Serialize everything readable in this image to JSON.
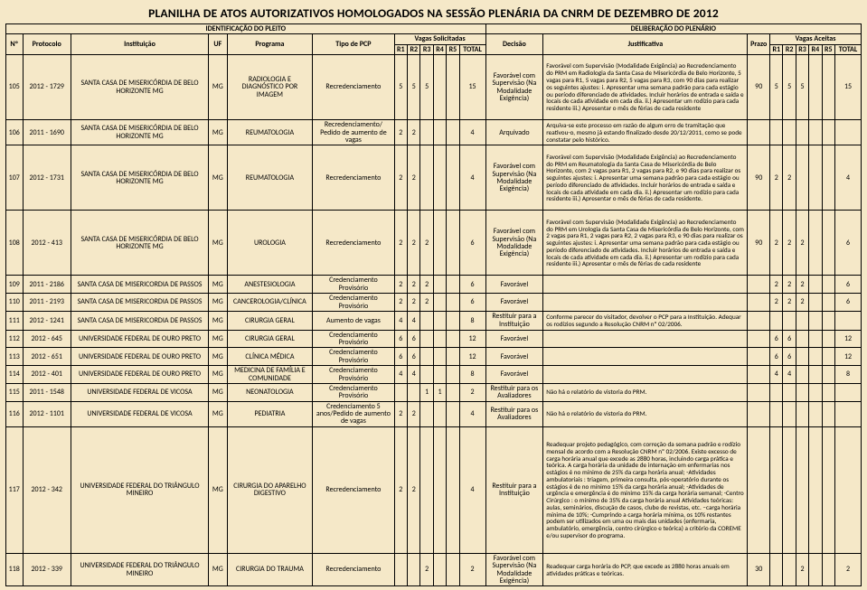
{
  "title": "PLANILHA DE ATOS AUTORIZATIVOS HOMOLOGADOS NA SESSÃO PLENÁRIA DA CNRM DE DEZEMBRO DE 2012",
  "section_left": "IDENTIFICAÇÃO DO PLEITO",
  "section_right": "DELIBERAÇÃO DO PLENÁRIO",
  "headers": {
    "no": "Nº",
    "protocolo": "Protocolo",
    "instituicao": "Instituição",
    "uf": "UF",
    "programa": "Programa",
    "tipo": "Tipo de PCP",
    "vagas_sol": "Vagas Solicitadas",
    "vagas_ac": "Vagas Aceitas",
    "r1": "R1",
    "r2": "R2",
    "r3": "R3",
    "r4": "R4",
    "r5": "R5",
    "total": "TOTAL",
    "decisao": "Decisão",
    "justificativa": "Justificativa",
    "prazo": "Prazo"
  },
  "rows": [
    {
      "no": "105",
      "prot": "2012 - 1729",
      "inst": "SANTA CASA DE MISERICÓRDIA DE BELO HORIZONTE MG",
      "uf": "MG",
      "prog": "RADIOLOGIA E DIAGNÓSTICO POR IMAGEM",
      "tipo": "Recredenciamento",
      "sol": [
        "5",
        "5",
        "5",
        "",
        "",
        "15"
      ],
      "dec": "Favorável com Supervisão (Na Modalidade Exigência)",
      "just": "Favorável com Supervisão (Modalidade Exigência) ao Recredenciamento do PRM em Radiologia da Santa Casa de Misericórdia de Belo Horizonte, 5 vagas para R1, 5 vagas para R2, 5 vagas para R3, com 90 dias para realizar os seguintes ajustes: i. Apresentar uma semana padrão para cada estágio ou período diferenciado de atividades. Incluir horários de entrada e saída e locais de cada atividade em cada dia. ii.) Apresentar um rodízio para cada residente iii.) Apresentar o mês de férias de cada residente",
      "prazo": "90",
      "ac": [
        "5",
        "5",
        "5",
        "",
        "",
        "15"
      ]
    },
    {
      "no": "106",
      "prot": "2011 - 1690",
      "inst": "SANTA CASA DE MISERICÓRDIA DE BELO HORIZONTE MG",
      "uf": "MG",
      "prog": "REUMATOLOGIA",
      "tipo": "Recredenciamento/ Pedido de aumento de vagas",
      "sol": [
        "2",
        "2",
        "",
        "",
        "",
        "4"
      ],
      "dec": "Arquivado",
      "just": "Arquiva-se este processo em razão de algum erro de tramitação que reativou-o, mesmo já estando finalizado desde 20/12/2011, como se pode constatar pelo histórico.",
      "prazo": "",
      "ac": [
        "",
        "",
        "",
        "",
        "",
        ""
      ]
    },
    {
      "no": "107",
      "prot": "2012 - 1731",
      "inst": "SANTA CASA DE MISERICÓRDIA DE BELO HORIZONTE MG",
      "uf": "MG",
      "prog": "REUMATOLOGIA",
      "tipo": "Recredenciamento",
      "sol": [
        "2",
        "2",
        "",
        "",
        "",
        "4"
      ],
      "dec": "Favorável com Supervisão (Na Modalidade Exigência)",
      "just": "Favorável com Supervisão (Modalidade Exigência) ao Recredenciamento do PRM em Reumatologia da Santa Casa de Misericórdia de Belo Horizonte, com 2 vagas para R1, 2 vagas para R2, e 90 dias para realizar os seguintes ajustes: i. Apresentar uma semana padrão para cada estágio ou período diferenciado de atividades. Incluir horários de entrada e saída e locais de cada atividade em cada dia. ii.) Apresentar um rodízio para cada residente iii.) Apresentar o mês de férias de cada residente.",
      "prazo": "90",
      "ac": [
        "2",
        "2",
        "",
        "",
        "",
        "4"
      ]
    },
    {
      "no": "108",
      "prot": "2012 - 413",
      "inst": "SANTA CASA DE MISERICÓRDIA DE BELO HORIZONTE MG",
      "uf": "MG",
      "prog": "UROLOGIA",
      "tipo": "Recredenciamento",
      "sol": [
        "2",
        "2",
        "2",
        "",
        "",
        "6"
      ],
      "dec": "Favorável com Supervisão (Na Modalidade Exigência)",
      "just": "Favorável com Supervisão (Modalidade Exigência) ao Recredenciamento do PRM em Urologia da Santa Casa de Misericórdia de Belo Horizonte, com 2 vagas para R1, 2 vagas para R2, 2 vagas para R3, e 90 dias para realizar os seguintes ajustes: i. Apresentar uma semana padrão para cada estágio ou período diferenciado de atividades. Incluir horários de entrada e saída e locais de cada atividade em cada dia. ii.) Apresentar um rodízio para cada residente iii.) Apresentar o mês de férias de cada residente",
      "prazo": "90",
      "ac": [
        "2",
        "2",
        "2",
        "",
        "",
        "6"
      ]
    },
    {
      "no": "109",
      "prot": "2011 - 2186",
      "inst": "SANTA CASA DE MISERICORDIA DE PASSOS",
      "uf": "MG",
      "prog": "ANESTESIOLOGIA",
      "tipo": "Credenciamento Provisório",
      "sol": [
        "2",
        "2",
        "2",
        "",
        "",
        "6"
      ],
      "dec": "Favorável",
      "just": "",
      "prazo": "",
      "ac": [
        "2",
        "2",
        "2",
        "",
        "",
        "6"
      ]
    },
    {
      "no": "110",
      "prot": "2011 - 2193",
      "inst": "SANTA CASA DE MISERICORDIA DE PASSOS",
      "uf": "MG",
      "prog": "CANCEROLOGIA/CLÍNICA",
      "tipo": "Credenciamento Provisório",
      "sol": [
        "2",
        "2",
        "2",
        "",
        "",
        "6"
      ],
      "dec": "Favorável",
      "just": "",
      "prazo": "",
      "ac": [
        "2",
        "2",
        "2",
        "",
        "",
        "6"
      ]
    },
    {
      "no": "111",
      "prot": "2012 - 1241",
      "inst": "SANTA CASA DE MISERICORDIA DE PASSOS",
      "uf": "MG",
      "prog": "CIRURGIA GERAL",
      "tipo": "Aumento de vagas",
      "sol": [
        "4",
        "4",
        "",
        "",
        "",
        "8"
      ],
      "dec": "Restituir para a Instituição",
      "just": "Conforme parecer do visitador, devolver o PCP para a Instituição. Adequar os rodízios segundo a Resolução CNRM nº 02/2006.",
      "prazo": "",
      "ac": [
        "",
        "",
        "",
        "",
        "",
        ""
      ]
    },
    {
      "no": "112",
      "prot": "2012 - 645",
      "inst": "UNIVERSIDADE FEDERAL DE OURO PRETO",
      "uf": "MG",
      "prog": "CIRURGIA GERAL",
      "tipo": "Credenciamento Provisório",
      "sol": [
        "6",
        "6",
        "",
        "",
        "",
        "12"
      ],
      "dec": "Favorável",
      "just": "",
      "prazo": "",
      "ac": [
        "6",
        "6",
        "",
        "",
        "",
        "12"
      ]
    },
    {
      "no": "113",
      "prot": "2012 - 651",
      "inst": "UNIVERSIDADE FEDERAL DE OURO PRETO",
      "uf": "MG",
      "prog": "CLÍNICA MÉDICA",
      "tipo": "Credenciamento Provisório",
      "sol": [
        "6",
        "6",
        "",
        "",
        "",
        "12"
      ],
      "dec": "Favorável",
      "just": "",
      "prazo": "",
      "ac": [
        "6",
        "6",
        "",
        "",
        "",
        "12"
      ]
    },
    {
      "no": "114",
      "prot": "2012 - 401",
      "inst": "UNIVERSIDADE FEDERAL DE OURO PRETO",
      "uf": "MG",
      "prog": "MEDICINA DE FAMÍLIA E COMUNIDADE",
      "tipo": "Credenciamento Provisório",
      "sol": [
        "4",
        "4",
        "",
        "",
        "",
        "8"
      ],
      "dec": "Favorável",
      "just": "",
      "prazo": "",
      "ac": [
        "4",
        "4",
        "",
        "",
        "",
        "8"
      ]
    },
    {
      "no": "115",
      "prot": "2011 - 1548",
      "inst": "UNIVERSIDADE FEDERAL DE VICOSA",
      "uf": "MG",
      "prog": "NEONATOLOGIA",
      "tipo": "Credenciamento Provisório",
      "sol": [
        "",
        "",
        "1",
        "1",
        "",
        "2"
      ],
      "dec": "Restituir para os Avaliadores",
      "just": "Não há o relatório de vistoria do PRM.",
      "prazo": "",
      "ac": [
        "",
        "",
        "",
        "",
        "",
        ""
      ]
    },
    {
      "no": "116",
      "prot": "2012 - 1101",
      "inst": "UNIVERSIDADE FEDERAL DE VICOSA",
      "uf": "MG",
      "prog": "PEDIATRIA",
      "tipo": "Credenciamento 5 anos/Pedido de aumento de vagas",
      "sol": [
        "2",
        "2",
        "",
        "",
        "",
        "4"
      ],
      "dec": "Restituir para os Avaliadores",
      "just": "Não há o relatório de vistoria do PRM.",
      "prazo": "",
      "ac": [
        "",
        "",
        "",
        "",
        "",
        ""
      ]
    },
    {
      "no": "117",
      "prot": "2012 - 342",
      "inst": "UNIVERSIDADE FEDERAL DO TRIÂNGULO MINEIRO",
      "uf": "MG",
      "prog": "CIRURGIA DO APARELHO DIGESTIVO",
      "tipo": "Recredenciamento",
      "sol": [
        "2",
        "2",
        "",
        "",
        "",
        "4"
      ],
      "dec": "Restituir para a Instituição",
      "just": "Readequar projeto pedagógico, com correção da semana padrão e rodízio mensal de acordo com a Resolução CNRM nº 02/2006. Existe excesso de carga horária anual que excede as 2880 horas, incluindo carga prática e teórica. A carga horária da unidade de internação em enfermarias nos estágios é no mínimo de 25% da carga horária anual; -Atividades ambulatoriais : triagem, primeira consulta, pós-operatório durante os estágios é de no mínimo 15% da carga horária anual; -Atividades de urgência e emergência é do mínimo 15% da carga horária semanal; -Centro Cirúrgico : o mínimo de 35% da carga horária anual Atividades teóricas: aulas, seminários, discução de casos, clube de revistas, etc. –carga horária mínima de 10%; -Cumprindo a carga horária mínima, os 10% restantes podem ser utilizados em uma ou mais das unidades (enfermaria, ambulatório, emergência, centro cirúrgico e teórica) a critério da COREME e/ou supervisor do programa.",
      "prazo": "",
      "ac": [
        "",
        "",
        "",
        "",
        "",
        ""
      ]
    },
    {
      "no": "118",
      "prot": "2012 - 339",
      "inst": "UNIVERSIDADE FEDERAL DO TRIÂNGULO MINEIRO",
      "uf": "MG",
      "prog": "CIRURGIA DO TRAUMA",
      "tipo": "Recredenciamento",
      "sol": [
        "",
        "",
        "2",
        "",
        "",
        "2"
      ],
      "dec": "Favorável com Supervisão (Na Modalidade Exigência)",
      "just": "Readequar carga horária do PCP, que excede as 2880 horas anuais em atividades práticas e teóricas.",
      "prazo": "30",
      "ac": [
        "",
        "",
        "2",
        "",
        "",
        "2"
      ]
    }
  ]
}
